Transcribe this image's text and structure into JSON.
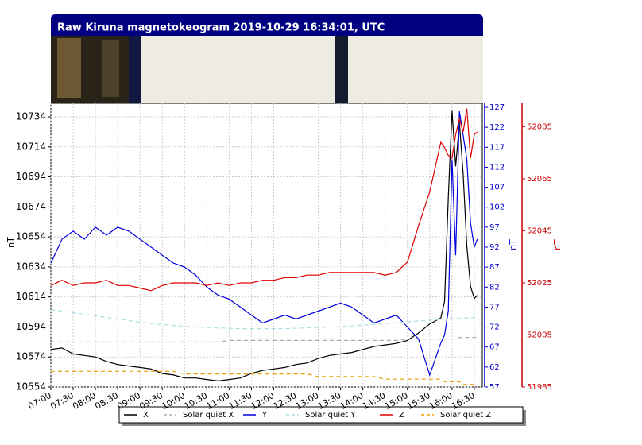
{
  "chart_data": {
    "type": "line",
    "title": "Raw Kiruna magnetokeogram 2019-10-29 16:34:01, UTC",
    "ylabel": "nT",
    "y2label": "nT",
    "y3label": "nT",
    "x": [
      7,
      7.25,
      7.5,
      7.75,
      8,
      8.25,
      8.5,
      8.75,
      9,
      9.25,
      9.5,
      9.75,
      10,
      10.25,
      10.5,
      10.75,
      11,
      11.25,
      11.5,
      11.75,
      12,
      12.25,
      12.5,
      12.75,
      13,
      13.25,
      13.5,
      13.75,
      14,
      14.25,
      14.5,
      14.75,
      15,
      15.25,
      15.5,
      15.75,
      15.833,
      15.917,
      16,
      16.083,
      16.167,
      16.25,
      16.333,
      16.417,
      16.5,
      16.567
    ],
    "xlim": [
      7,
      16.68
    ],
    "xticks": [
      {
        "value": 7,
        "label": "07:00"
      },
      {
        "value": 7.5,
        "label": "07:30"
      },
      {
        "value": 8,
        "label": "08:00"
      },
      {
        "value": 8.5,
        "label": "08:30"
      },
      {
        "value": 9,
        "label": "09:00"
      },
      {
        "value": 9.5,
        "label": "09:30"
      },
      {
        "value": 10,
        "label": "10:00"
      },
      {
        "value": 10.5,
        "label": "10:30"
      },
      {
        "value": 11,
        "label": "11:00"
      },
      {
        "value": 11.5,
        "label": "11:30"
      },
      {
        "value": 12,
        "label": "12:00"
      },
      {
        "value": 12.5,
        "label": "12:30"
      },
      {
        "value": 13,
        "label": "13:00"
      },
      {
        "value": 13.5,
        "label": "13:30"
      },
      {
        "value": 14,
        "label": "14:00"
      },
      {
        "value": 14.5,
        "label": "14:30"
      },
      {
        "value": 15,
        "label": "15:00"
      },
      {
        "value": 15.5,
        "label": "15:30"
      },
      {
        "value": 16,
        "label": "16:00"
      },
      {
        "value": 16.5,
        "label": "16:30"
      }
    ],
    "ylim": [
      10554,
      10743
    ],
    "yticks": [
      10554,
      10574,
      10594,
      10614,
      10634,
      10654,
      10674,
      10694,
      10714,
      10734
    ],
    "y2lim": [
      57,
      128
    ],
    "y2ticks": [
      57,
      62,
      67,
      72,
      77,
      82,
      87,
      92,
      97,
      102,
      107,
      112,
      117,
      122,
      127
    ],
    "y3lim": [
      51985,
      52094
    ],
    "y3ticks": [
      51985,
      52005,
      52025,
      52045,
      52065,
      52085
    ],
    "grid": true,
    "series": [
      {
        "name": "X",
        "color": "#000000",
        "values": [
          10579,
          10580,
          10576,
          10575,
          10574,
          10571,
          10569,
          10568,
          10567,
          10566,
          10563,
          10562,
          10560,
          10560,
          10559,
          10558,
          10559,
          10560,
          10563,
          10565,
          10566,
          10567,
          10569,
          10570,
          10573,
          10575,
          10576,
          10577,
          10579,
          10581,
          10582,
          10583,
          10585,
          10590,
          10596,
          10600,
          10611,
          10680,
          10738,
          10701,
          10730,
          10696,
          10648,
          10621,
          10613,
          10615
        ]
      },
      {
        "name": "Solar quiet X",
        "color": "#aaaaaa",
        "dashed": true,
        "values": [
          10584,
          10584,
          10584,
          10584,
          10584,
          10584,
          10584,
          10584,
          10584,
          10584,
          10584,
          10584,
          10584,
          10584,
          10584,
          10584,
          10585,
          10585,
          10585,
          10585,
          10585,
          10585,
          10585,
          10585,
          10585,
          10585,
          10585,
          10585,
          10585,
          10585,
          10585,
          10585,
          10586,
          10586,
          10586,
          10586,
          10586,
          10586,
          10586,
          10586,
          10587,
          10587,
          10587,
          10587,
          10587,
          10587
        ]
      },
      {
        "name": "Y",
        "color": "#0000dd",
        "axis": "y2",
        "values": [
          88,
          94,
          96,
          94,
          97,
          95,
          97,
          96,
          94,
          92,
          90,
          88,
          87,
          85,
          82,
          80,
          79,
          77,
          75,
          73,
          74,
          75,
          74,
          75,
          76,
          77,
          78,
          77,
          75,
          73,
          74,
          75,
          72,
          69,
          60,
          68,
          70,
          76,
          114,
          90,
          126,
          120,
          114,
          98,
          92,
          94
        ]
      },
      {
        "name": "Solar quiet Y",
        "color": "#aadde6",
        "dashed": true,
        "axis": "y2",
        "values": [
          76.3,
          76.0,
          75.6,
          75.2,
          74.8,
          74.4,
          74.0,
          73.6,
          73.2,
          72.9,
          72.6,
          72.4,
          72.2,
          72.0,
          71.9,
          71.8,
          71.7,
          71.6,
          71.6,
          71.6,
          71.6,
          71.6,
          71.7,
          71.8,
          71.9,
          72.0,
          72.1,
          72.3,
          72.5,
          72.7,
          72.9,
          73.1,
          73.3,
          73.5,
          73.7,
          73.9,
          74.0,
          74.0,
          74.1,
          74.1,
          74.2,
          74.2,
          74.3,
          74.3,
          74.4,
          74.4
        ]
      },
      {
        "name": "Z",
        "color": "#dd0000",
        "axis": "y3",
        "values": [
          52024,
          52026,
          52024,
          52025,
          52025,
          52026,
          52024,
          52024,
          52023,
          52022,
          52024,
          52025,
          52025,
          52025,
          52024,
          52025,
          52024,
          52025,
          52025,
          52026,
          52026,
          52027,
          52027,
          52028,
          52028,
          52029,
          52029,
          52029,
          52029,
          52029,
          52028,
          52029,
          52033,
          52047,
          52060,
          52079,
          52077,
          52074,
          52073,
          52082,
          52088,
          52083,
          52092,
          52073,
          52082,
          52083
        ]
      },
      {
        "name": "Solar quiet Z",
        "color": "#e8a000",
        "dashed": true,
        "axis": "y3",
        "values": [
          51991,
          51991,
          51991,
          51991,
          51991,
          51991,
          51991,
          51991,
          51991,
          51991,
          51991,
          51991,
          51990,
          51990,
          51990,
          51990,
          51990,
          51990,
          51990,
          51990,
          51990,
          51990,
          51990,
          51990,
          51989,
          51989,
          51989,
          51989,
          51989,
          51989,
          51988,
          51988,
          51988,
          51988,
          51988,
          51988,
          51987,
          51987,
          51987,
          51987,
          51987,
          51986,
          51986,
          51986,
          51986,
          51986
        ]
      }
    ]
  }
}
